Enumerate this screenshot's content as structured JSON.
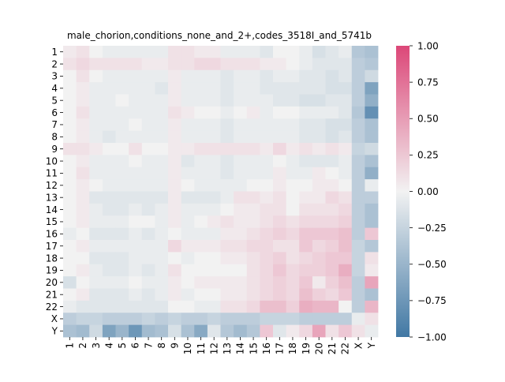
{
  "chart_data": {
    "type": "heatmap",
    "title": "male_chorion,conditions_none_and_2+,codes_3518I_and_5741b",
    "xlabel": "",
    "ylabel": "",
    "x_labels": [
      "1",
      "2",
      "3",
      "4",
      "5",
      "6",
      "7",
      "8",
      "9",
      "10",
      "11",
      "12",
      "13",
      "14",
      "15",
      "16",
      "17",
      "18",
      "19",
      "20",
      "21",
      "22",
      "X",
      "Y"
    ],
    "y_labels": [
      "1",
      "2",
      "3",
      "4",
      "5",
      "6",
      "7",
      "8",
      "9",
      "10",
      "11",
      "12",
      "13",
      "14",
      "15",
      "16",
      "17",
      "18",
      "19",
      "20",
      "21",
      "22",
      "X",
      "Y"
    ],
    "values": [
      [
        0.05,
        0.1,
        0.0,
        -0.05,
        -0.05,
        -0.05,
        -0.05,
        -0.05,
        0.1,
        0.1,
        0.05,
        0.05,
        -0.05,
        -0.05,
        -0.05,
        -0.1,
        0.0,
        0.0,
        -0.05,
        -0.15,
        -0.1,
        -0.05,
        -0.35,
        -0.4
      ],
      [
        0.1,
        0.15,
        0.1,
        0.1,
        0.1,
        0.1,
        0.05,
        0.05,
        0.1,
        0.1,
        0.15,
        0.15,
        0.1,
        0.1,
        0.1,
        0.05,
        0.05,
        0.0,
        -0.05,
        -0.1,
        -0.1,
        -0.1,
        -0.3,
        -0.35
      ],
      [
        0.0,
        0.1,
        0.0,
        -0.05,
        -0.05,
        -0.05,
        -0.05,
        -0.05,
        0.05,
        -0.05,
        -0.05,
        -0.05,
        -0.1,
        -0.05,
        -0.05,
        -0.1,
        -0.05,
        -0.05,
        -0.1,
        -0.1,
        -0.15,
        -0.1,
        -0.3,
        -0.2
      ],
      [
        0.0,
        0.05,
        -0.05,
        -0.05,
        -0.05,
        -0.05,
        -0.05,
        -0.1,
        0.05,
        -0.05,
        -0.05,
        -0.05,
        -0.1,
        -0.05,
        -0.05,
        -0.1,
        -0.1,
        -0.1,
        -0.1,
        -0.1,
        -0.15,
        -0.15,
        -0.3,
        -0.65
      ],
      [
        0.0,
        0.05,
        -0.05,
        -0.05,
        0.0,
        -0.05,
        -0.05,
        -0.05,
        0.05,
        -0.05,
        -0.05,
        -0.05,
        -0.1,
        -0.05,
        -0.05,
        -0.05,
        -0.1,
        -0.1,
        -0.15,
        -0.15,
        -0.1,
        -0.1,
        -0.3,
        -0.55
      ],
      [
        0.0,
        0.1,
        -0.05,
        -0.05,
        -0.05,
        -0.05,
        -0.05,
        -0.05,
        0.1,
        0.05,
        0.0,
        0.0,
        -0.05,
        0.0,
        0.05,
        -0.05,
        0.0,
        0.0,
        -0.05,
        -0.05,
        -0.05,
        -0.1,
        -0.35,
        -0.8
      ],
      [
        0.0,
        0.05,
        -0.05,
        -0.05,
        -0.05,
        0.0,
        -0.05,
        -0.05,
        0.05,
        -0.05,
        -0.05,
        -0.05,
        -0.1,
        -0.05,
        -0.05,
        -0.05,
        -0.05,
        -0.05,
        -0.1,
        -0.1,
        -0.15,
        -0.15,
        -0.3,
        -0.4
      ],
      [
        0.0,
        0.05,
        -0.05,
        -0.1,
        -0.05,
        -0.05,
        -0.05,
        -0.05,
        0.05,
        -0.05,
        -0.05,
        -0.05,
        -0.1,
        -0.05,
        -0.05,
        -0.05,
        -0.05,
        -0.05,
        -0.1,
        -0.1,
        -0.15,
        -0.1,
        -0.3,
        -0.4
      ],
      [
        0.1,
        0.1,
        0.05,
        0.0,
        0.0,
        0.1,
        0.0,
        0.0,
        0.05,
        0.05,
        0.1,
        0.1,
        0.1,
        0.1,
        0.1,
        0.05,
        0.15,
        0.05,
        0.1,
        0.05,
        0.1,
        0.05,
        -0.25,
        -0.2
      ],
      [
        0.0,
        0.05,
        -0.05,
        -0.05,
        -0.05,
        0.0,
        -0.05,
        -0.05,
        0.05,
        -0.1,
        -0.05,
        -0.05,
        -0.1,
        -0.05,
        -0.05,
        -0.05,
        0.0,
        -0.05,
        -0.1,
        -0.1,
        -0.1,
        -0.05,
        -0.3,
        -0.4
      ],
      [
        0.0,
        0.1,
        -0.05,
        -0.05,
        -0.05,
        -0.05,
        -0.05,
        -0.05,
        0.05,
        -0.05,
        -0.05,
        -0.05,
        -0.1,
        -0.05,
        -0.05,
        -0.05,
        0.05,
        -0.05,
        -0.05,
        0.05,
        0.0,
        -0.05,
        -0.3,
        -0.55
      ],
      [
        0.0,
        0.05,
        0.0,
        -0.05,
        -0.05,
        -0.05,
        -0.05,
        -0.05,
        0.05,
        0.0,
        -0.05,
        -0.05,
        -0.05,
        -0.05,
        0.0,
        0.0,
        0.05,
        0.0,
        0.0,
        0.05,
        0.05,
        0.0,
        -0.3,
        -0.05
      ],
      [
        0.0,
        0.05,
        -0.1,
        -0.1,
        -0.1,
        -0.1,
        -0.1,
        -0.1,
        0.05,
        -0.1,
        -0.1,
        -0.1,
        -0.05,
        0.1,
        0.1,
        0.05,
        0.1,
        0.0,
        0.05,
        0.05,
        0.15,
        0.1,
        -0.3,
        -0.3
      ],
      [
        0.0,
        0.05,
        -0.05,
        -0.1,
        -0.1,
        -0.05,
        -0.1,
        -0.05,
        0.05,
        -0.05,
        -0.05,
        -0.05,
        0.0,
        0.05,
        0.05,
        0.1,
        0.1,
        0.0,
        0.1,
        0.1,
        0.1,
        0.15,
        -0.3,
        -0.4
      ],
      [
        0.0,
        0.05,
        -0.05,
        -0.05,
        -0.05,
        0.0,
        0.0,
        -0.05,
        0.05,
        -0.05,
        0.0,
        0.05,
        0.1,
        0.05,
        0.05,
        0.1,
        0.15,
        0.1,
        0.15,
        0.15,
        0.15,
        0.2,
        -0.3,
        -0.4
      ],
      [
        -0.05,
        0.0,
        -0.1,
        -0.1,
        -0.1,
        -0.05,
        -0.1,
        -0.05,
        0.0,
        -0.05,
        -0.05,
        -0.05,
        0.05,
        0.05,
        0.1,
        0.15,
        0.2,
        0.15,
        0.25,
        0.25,
        0.25,
        0.3,
        -0.3,
        0.25
      ],
      [
        0.0,
        0.05,
        -0.05,
        -0.05,
        -0.05,
        -0.05,
        -0.05,
        -0.05,
        0.15,
        0.05,
        0.05,
        0.05,
        0.1,
        0.1,
        0.15,
        0.15,
        0.1,
        0.1,
        0.25,
        0.15,
        0.2,
        0.3,
        -0.25,
        -0.35
      ],
      [
        0.0,
        0.0,
        -0.1,
        -0.1,
        -0.1,
        -0.05,
        -0.05,
        -0.05,
        0.0,
        -0.05,
        0.0,
        0.0,
        0.05,
        0.05,
        0.1,
        0.15,
        0.2,
        0.1,
        0.15,
        0.2,
        0.25,
        0.25,
        -0.25,
        0.1
      ],
      [
        0.0,
        0.05,
        -0.05,
        -0.1,
        -0.1,
        -0.05,
        -0.1,
        -0.05,
        0.1,
        0.0,
        0.0,
        0.0,
        0.0,
        0.0,
        0.1,
        0.15,
        0.25,
        0.15,
        0.2,
        0.2,
        0.25,
        0.4,
        -0.25,
        0.05
      ],
      [
        -0.15,
        0.0,
        -0.05,
        -0.05,
        -0.05,
        0.0,
        -0.05,
        -0.05,
        0.05,
        0.0,
        0.05,
        0.05,
        0.05,
        0.05,
        0.1,
        0.15,
        0.2,
        0.15,
        0.25,
        0.05,
        0.2,
        0.3,
        -0.3,
        0.45
      ],
      [
        0.0,
        0.05,
        -0.1,
        -0.1,
        -0.1,
        -0.05,
        -0.1,
        -0.05,
        0.05,
        -0.05,
        0.0,
        0.0,
        0.05,
        0.05,
        0.1,
        0.15,
        0.2,
        0.15,
        0.3,
        0.2,
        0.15,
        0.25,
        -0.3,
        -0.4
      ],
      [
        -0.05,
        -0.1,
        -0.1,
        -0.1,
        -0.1,
        -0.1,
        -0.1,
        -0.1,
        0.0,
        0.0,
        -0.05,
        -0.05,
        0.1,
        0.1,
        0.15,
        0.3,
        0.3,
        0.2,
        0.4,
        0.35,
        0.35,
        0.0,
        -0.3,
        0.35
      ],
      [
        -0.3,
        -0.25,
        -0.25,
        -0.3,
        -0.3,
        -0.3,
        -0.25,
        -0.3,
        -0.25,
        -0.3,
        -0.3,
        -0.25,
        -0.3,
        -0.3,
        -0.3,
        -0.25,
        -0.25,
        -0.25,
        -0.3,
        -0.3,
        -0.3,
        -0.3,
        -0.05,
        0.1
      ],
      [
        -0.4,
        -0.45,
        -0.2,
        -0.65,
        -0.5,
        -0.75,
        -0.45,
        -0.4,
        -0.15,
        -0.4,
        -0.6,
        -0.1,
        -0.35,
        -0.45,
        -0.35,
        0.25,
        -0.1,
        0.05,
        0.15,
        0.45,
        0.1,
        0.25,
        0.1,
        -0.05
      ]
    ],
    "vmin": -1.0,
    "vmax": 1.0,
    "colorbar_ticks": [
      "1.00",
      "0.75",
      "0.50",
      "0.25",
      "0.00",
      "−0.25",
      "−0.50",
      "−0.75",
      "−1.00"
    ],
    "colorbar_tick_values": [
      1.0,
      0.75,
      0.5,
      0.25,
      0.0,
      -0.25,
      -0.5,
      -0.75,
      -1.0
    ],
    "colormap": {
      "negative": "#4178a4",
      "center": "#f2f2f2",
      "positive": "#dc4778"
    }
  }
}
